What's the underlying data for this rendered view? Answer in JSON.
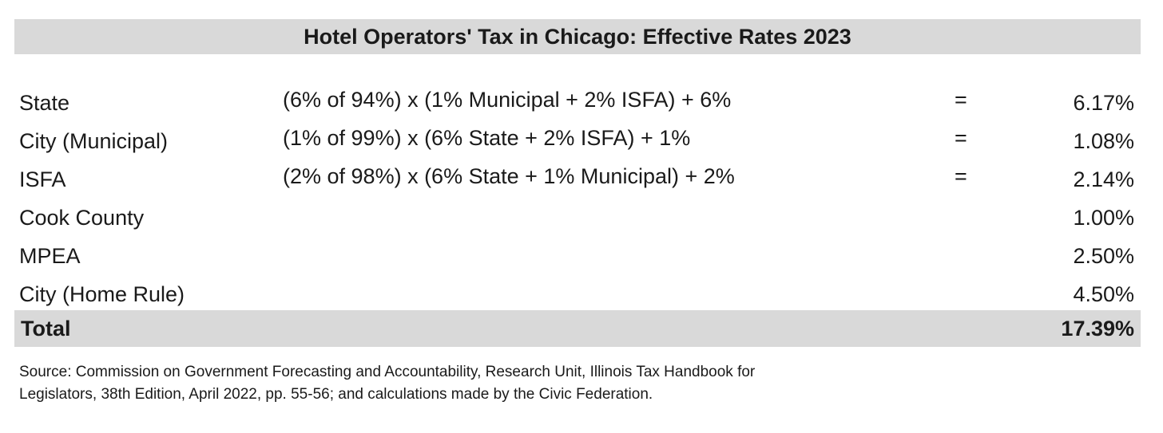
{
  "title": "Hotel Operators' Tax in Chicago: Effective Rates 2023",
  "rows": [
    {
      "label": "State",
      "formula": "(6% of 94%) x (1% Municipal + 2% ISFA) + 6%",
      "eq": "=",
      "value": "6.17%"
    },
    {
      "label": "City (Municipal)",
      "formula": "(1% of 99%) x (6% State + 2% ISFA) + 1%",
      "eq": "=",
      "value": "1.08%"
    },
    {
      "label": "ISFA",
      "formula": "(2% of 98%) x (6% State + 1% Municipal) + 2%",
      "eq": "=",
      "value": "2.14%"
    },
    {
      "label": "Cook County",
      "formula": "",
      "eq": "",
      "value": "1.00%"
    },
    {
      "label": "MPEA",
      "formula": "",
      "eq": "",
      "value": "2.50%"
    },
    {
      "label": "City (Home Rule)",
      "formula": "",
      "eq": "",
      "value": "4.50%"
    }
  ],
  "total": {
    "label": "Total",
    "value": "17.39%"
  },
  "source_line1": "Source: Commission on Government Forecasting and Accountability, Research Unit, Illinois Tax Handbook for",
  "source_line2": "Legislators, 38th Edition, April 2022, pp. 55-56; and calculations made by the Civic Federation.",
  "colors": {
    "header_bg": "#d9d9d9",
    "total_bg": "#d9d9d9",
    "text": "#1a1a1a"
  }
}
